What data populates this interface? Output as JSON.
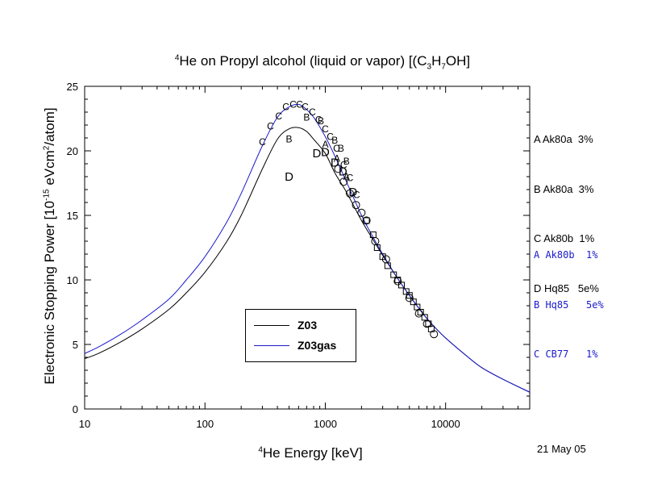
{
  "title": {
    "prefix_sup": "4",
    "main": "He on Propyl alcohol (liquid or vapor) [(C",
    "sub1": "3",
    "mid1": "H",
    "sub2": "7",
    "tail": "OH]"
  },
  "axes": {
    "ylabel_pre": "Electronic Stopping Power [10",
    "ylabel_sup1": "-15",
    "ylabel_mid": " eVcm",
    "ylabel_sup2": "2",
    "ylabel_post": "/atom]",
    "xlabel_sup": "4",
    "xlabel_main": "He Energy [keV]"
  },
  "date": "21 May 05",
  "legend": {
    "items": [
      {
        "label": "Z03",
        "color": "#000000"
      },
      {
        "label": "Z03gas",
        "color": "#1a1acc"
      }
    ]
  },
  "references_black": [
    {
      "text": "A Ak80a  3%"
    },
    {
      "text": "B Ak80a  3%"
    },
    {
      "text": "C Ak80b  1%"
    },
    {
      "text": "D Hq85   5e%"
    }
  ],
  "references_blue": [
    {
      "text": "A Ak80b  1%"
    },
    {
      "text": "B Hq85   5e%"
    },
    {
      "text": "C CB77   1%"
    }
  ],
  "colors": {
    "black": "#000000",
    "blue": "#1a1acc"
  },
  "chart_data": {
    "type": "line",
    "xscale": "log",
    "xlim": [
      10,
      50000
    ],
    "ylim": [
      0,
      25
    ],
    "xticks": [
      10,
      100,
      1000,
      10000
    ],
    "xtick_labels": [
      "10",
      "100",
      "1000",
      "10000"
    ],
    "yticks": [
      0,
      5,
      10,
      15,
      20,
      25
    ],
    "ytick_labels": [
      "0",
      "5",
      "10",
      "15",
      "20",
      "25"
    ],
    "grid": false,
    "series": [
      {
        "name": "Z03",
        "color": "#000000",
        "x": [
          10,
          13,
          20,
          30,
          50,
          70,
          100,
          150,
          200,
          300,
          400,
          500,
          600,
          700,
          800,
          1000,
          1200,
          1500,
          2000,
          2500,
          3000,
          4000,
          5000,
          6000,
          7000,
          8000,
          10000,
          15000,
          20000,
          30000,
          50000
        ],
        "y": [
          3.9,
          4.3,
          5.2,
          6.2,
          7.7,
          9.0,
          10.6,
          12.9,
          15.0,
          18.6,
          20.9,
          21.7,
          21.8,
          21.5,
          20.9,
          19.8,
          18.3,
          16.8,
          14.6,
          13.1,
          11.9,
          10.1,
          8.8,
          7.8,
          7.0,
          6.4,
          5.5,
          4.1,
          3.2,
          2.3,
          1.3
        ]
      },
      {
        "name": "Z03gas",
        "color": "#1a1acc",
        "x": [
          10,
          13,
          20,
          30,
          50,
          70,
          100,
          150,
          200,
          300,
          400,
          500,
          600,
          700,
          800,
          1000,
          1200,
          1500,
          2000,
          2500,
          3000,
          4000,
          5000,
          6000,
          7000,
          8000,
          10000,
          15000,
          20000,
          30000,
          50000
        ],
        "y": [
          4.3,
          4.8,
          5.8,
          6.9,
          8.5,
          10.0,
          11.8,
          14.4,
          16.7,
          20.4,
          22.6,
          23.4,
          23.6,
          23.2,
          22.6,
          21.1,
          19.6,
          17.6,
          15.0,
          13.3,
          12.0,
          10.1,
          8.8,
          7.8,
          7.0,
          6.4,
          5.5,
          4.1,
          3.2,
          2.3,
          1.3
        ]
      }
    ],
    "points": [
      {
        "m": "C",
        "x": 300,
        "y": 20.7
      },
      {
        "m": "C",
        "x": 350,
        "y": 21.9
      },
      {
        "m": "C",
        "x": 410,
        "y": 22.7
      },
      {
        "m": "C",
        "x": 470,
        "y": 23.4
      },
      {
        "m": "C",
        "x": 540,
        "y": 23.6
      },
      {
        "m": "C",
        "x": 610,
        "y": 23.6
      },
      {
        "m": "C",
        "x": 680,
        "y": 23.4
      },
      {
        "m": "C",
        "x": 780,
        "y": 23.0
      },
      {
        "m": "C",
        "x": 880,
        "y": 22.4
      },
      {
        "m": "C",
        "x": 1000,
        "y": 21.7
      },
      {
        "m": "C",
        "x": 1100,
        "y": 21.1
      },
      {
        "m": "C",
        "x": 1240,
        "y": 20.2
      },
      {
        "m": "C",
        "x": 1420,
        "y": 18.9
      },
      {
        "m": "C",
        "x": 1600,
        "y": 17.9
      },
      {
        "m": "C",
        "x": 1820,
        "y": 16.6
      },
      {
        "m": "B",
        "x": 500,
        "y": 20.9
      },
      {
        "m": "B",
        "x": 700,
        "y": 22.6
      },
      {
        "m": "B",
        "x": 920,
        "y": 22.3
      },
      {
        "m": "B",
        "x": 1200,
        "y": 20.8
      },
      {
        "m": "B",
        "x": 1350,
        "y": 20.2
      },
      {
        "m": "B",
        "x": 1500,
        "y": 19.2
      },
      {
        "m": "A",
        "x": 1000,
        "y": 20.5
      },
      {
        "m": "A",
        "x": 1250,
        "y": 19.4
      },
      {
        "m": "A",
        "x": 1500,
        "y": 18.0
      },
      {
        "m": "D",
        "x": 500,
        "y": 18.0
      },
      {
        "m": "D",
        "x": 850,
        "y": 19.8
      },
      {
        "m": "D",
        "x": 1000,
        "y": 19.9
      },
      {
        "m": "D",
        "x": 1200,
        "y": 19.1
      },
      {
        "m": "D",
        "x": 1400,
        "y": 18.4
      },
      {
        "m": "D",
        "x": 1700,
        "y": 16.8
      },
      {
        "m": "O",
        "x": 1280,
        "y": 18.6
      },
      {
        "m": "O",
        "x": 1420,
        "y": 17.6
      },
      {
        "m": "O",
        "x": 1600,
        "y": 16.7
      },
      {
        "m": "O",
        "x": 1800,
        "y": 15.8
      },
      {
        "m": "O",
        "x": 2000,
        "y": 15.2
      },
      {
        "m": "O",
        "x": 2200,
        "y": 14.6
      },
      {
        "m": "O",
        "x": 2600,
        "y": 13.0
      },
      {
        "m": "O",
        "x": 3200,
        "y": 11.6
      },
      {
        "m": "O",
        "x": 4000,
        "y": 9.9
      },
      {
        "m": "O",
        "x": 5000,
        "y": 8.6
      },
      {
        "m": "O",
        "x": 6000,
        "y": 7.4
      },
      {
        "m": "O",
        "x": 7000,
        "y": 6.6
      },
      {
        "m": "O",
        "x": 8000,
        "y": 5.8
      },
      {
        "m": "S",
        "x": 2200,
        "y": 14.6
      },
      {
        "m": "S",
        "x": 2500,
        "y": 13.5
      },
      {
        "m": "S",
        "x": 2700,
        "y": 12.5
      },
      {
        "m": "S",
        "x": 3000,
        "y": 11.8
      },
      {
        "m": "S",
        "x": 3300,
        "y": 11.1
      },
      {
        "m": "S",
        "x": 3700,
        "y": 10.4
      },
      {
        "m": "S",
        "x": 4000,
        "y": 10.0
      },
      {
        "m": "S",
        "x": 4300,
        "y": 9.6
      },
      {
        "m": "S",
        "x": 4700,
        "y": 9.1
      },
      {
        "m": "S",
        "x": 5000,
        "y": 8.8
      },
      {
        "m": "S",
        "x": 5400,
        "y": 8.3
      },
      {
        "m": "S",
        "x": 5800,
        "y": 7.9
      },
      {
        "m": "S",
        "x": 6200,
        "y": 7.5
      },
      {
        "m": "S",
        "x": 6700,
        "y": 7.1
      },
      {
        "m": "S",
        "x": 7200,
        "y": 6.6
      },
      {
        "m": "S",
        "x": 7600,
        "y": 6.2
      }
    ]
  }
}
